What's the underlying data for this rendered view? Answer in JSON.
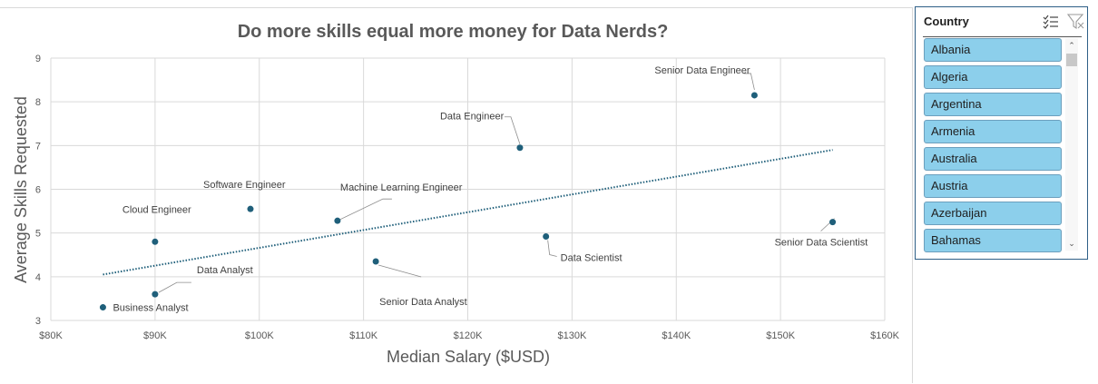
{
  "chart_data": {
    "type": "scatter",
    "title": "Do more skills equal more money for Data Nerds?",
    "xlabel": "Median Salary ($USD)",
    "ylabel": "Average  Skills Requested",
    "xlim": [
      80000,
      160000
    ],
    "ylim": [
      3,
      9
    ],
    "x_ticks": [
      80000,
      90000,
      100000,
      110000,
      120000,
      130000,
      140000,
      150000,
      160000
    ],
    "x_tick_labels": [
      "$80K",
      "$90K",
      "$100K",
      "$110K",
      "$120K",
      "$130K",
      "$140K",
      "$150K",
      "$160K"
    ],
    "y_ticks": [
      3,
      4,
      5,
      6,
      7,
      8,
      9
    ],
    "y_tick_labels": [
      "3",
      "4",
      "5",
      "6",
      "7",
      "8",
      "9"
    ],
    "grid": true,
    "point_color": "#1f5f7a",
    "points": [
      {
        "label": "Senior Data Engineer",
        "x": 147500,
        "y": 8.15
      },
      {
        "label": "Data Engineer",
        "x": 125000,
        "y": 6.95
      },
      {
        "label": "Software Engineer",
        "x": 99150,
        "y": 5.55
      },
      {
        "label": "Machine Learning Engineer",
        "x": 107500,
        "y": 5.28
      },
      {
        "label": "Cloud Engineer",
        "x": 90000,
        "y": 4.8
      },
      {
        "label": "Senior Data Scientist",
        "x": 155000,
        "y": 5.25
      },
      {
        "label": "Data Scientist",
        "x": 127500,
        "y": 4.92
      },
      {
        "label": "Senior Data Analyst",
        "x": 111175,
        "y": 4.35
      },
      {
        "label": "Data Analyst",
        "x": 90000,
        "y": 3.6
      },
      {
        "label": "Business Analyst",
        "x": 85000,
        "y": 3.3
      }
    ],
    "trendline": {
      "style": "dotted",
      "color": "#1f5f7a",
      "from": [
        85000,
        4.05
      ],
      "to": [
        155000,
        6.9
      ]
    }
  },
  "slicer": {
    "title": "Country",
    "multi_select_icon": "multi-select-icon",
    "clear_filter_icon": "clear-filter-icon",
    "items": [
      "Albania",
      "Algeria",
      "Argentina",
      "Armenia",
      "Australia",
      "Austria",
      "Azerbaijan",
      "Bahamas"
    ],
    "item_color": "#8ccfeb",
    "border_color": "#2e5f87"
  }
}
